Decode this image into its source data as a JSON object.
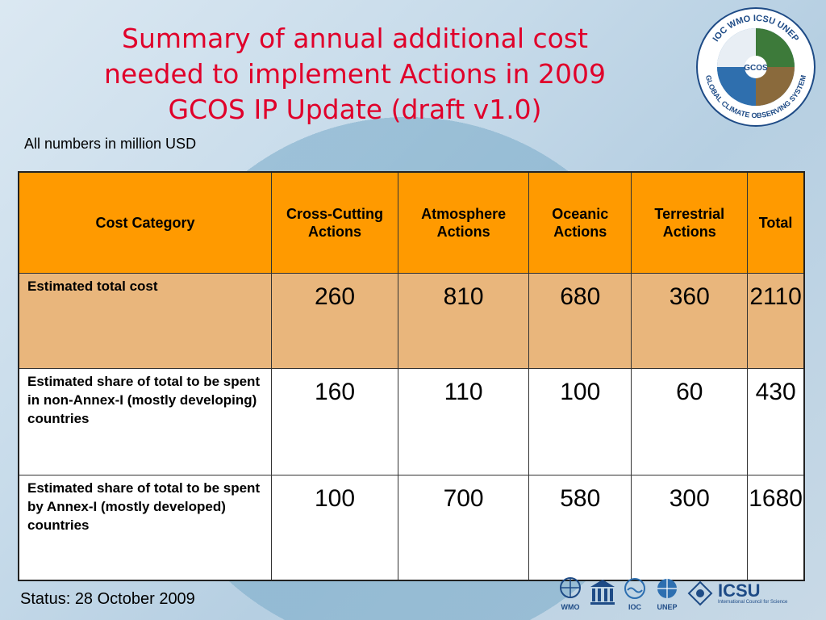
{
  "title": {
    "line1": "Summary of annual additional cost",
    "line2": "needed to implement Actions in 2009",
    "line3": "GCOS IP Update (draft v1.0)"
  },
  "subtitle": "All numbers in million USD",
  "logo": {
    "top_text": "IOC  WMO  ICSU  UNEP",
    "bottom_text": "GLOBAL CLIMATE OBSERVING SYSTEM",
    "center_text": "GCOS"
  },
  "table": {
    "headers": [
      "Cost Category",
      "Cross-Cutting Actions",
      "Atmosphere Actions",
      "Oceanic Actions",
      "Terrestrial Actions",
      "Total"
    ],
    "rows": [
      {
        "label": "Estimated total cost",
        "values": [
          "260",
          "810",
          "680",
          "360",
          "2110"
        ]
      },
      {
        "label": "Estimated share of total to be spent in non-Annex-I (mostly developing) countries",
        "values": [
          "160",
          "110",
          "100",
          "60",
          "430"
        ]
      },
      {
        "label": "Estimated share of total to be spent by Annex-I (mostly developed) countries",
        "values": [
          "100",
          "700",
          "580",
          "300",
          "1680"
        ]
      }
    ]
  },
  "status": "Status: 28 October 2009",
  "partners": {
    "wmo": "WMO",
    "unesco": "",
    "ioc": "IOC",
    "unep": "UNEP",
    "icsu": "ICSU",
    "icsu_sub": "International Council for Science"
  },
  "colors": {
    "title": "#e0002a",
    "header_bg": "#ff9a00",
    "row1_bg": "#e9b67c",
    "row_bg": "#ffffff"
  }
}
